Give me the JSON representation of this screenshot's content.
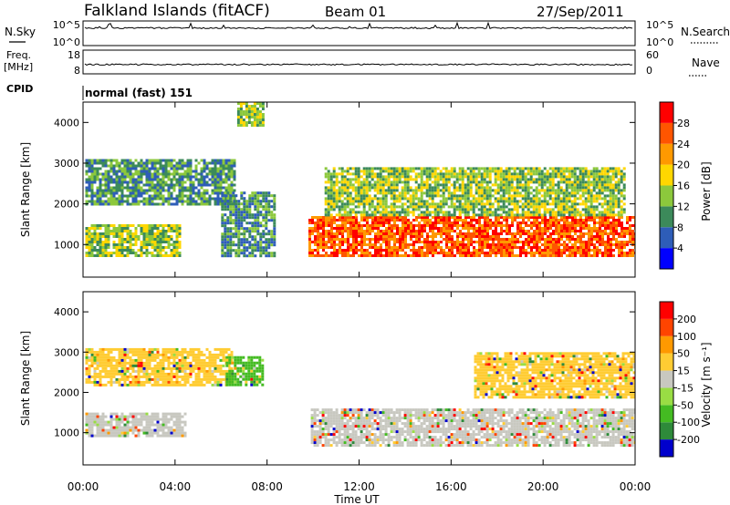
{
  "header": {
    "station": "Falkland Islands (fitACF)",
    "beam": "Beam 01",
    "date": "27/Sep/2011"
  },
  "noise_panel": {
    "left_label": "N.Sky",
    "right_label": "N.Search",
    "left_ticks": [
      "10^5",
      "10^0"
    ],
    "right_ticks": [
      "10^5",
      "10^0"
    ]
  },
  "freq_panel": {
    "left_label": "Freq.",
    "left_unit": "[MHz]",
    "right_label": "Nave",
    "left_ticks": [
      "18",
      "8"
    ],
    "right_ticks": [
      "60",
      "0"
    ]
  },
  "cpid": {
    "label": "CPID",
    "mode": "normal (fast) 151"
  },
  "chart_data": [
    {
      "type": "heatmap",
      "quantity": "power",
      "ylabel": "Slant Range [km]",
      "yticks": [
        "1000",
        "2000",
        "3000",
        "4000"
      ],
      "ylim": [
        200,
        4500
      ],
      "xlim": [
        0,
        24
      ],
      "colorbar": {
        "label": "Power [dB]",
        "ticks": [
          "4",
          "8",
          "12",
          "16",
          "20",
          "24",
          "28"
        ],
        "colors": [
          "#0000ff",
          "#2e5db8",
          "#3c8a5a",
          "#8cc83c",
          "#ffd700",
          "#ff9900",
          "#ff5500",
          "#ff0000"
        ]
      },
      "echo_regions": [
        {
          "t0": 0.1,
          "t1": 4.2,
          "r0": 700,
          "r1": 1500,
          "level": 3
        },
        {
          "t0": 0.1,
          "t1": 6.6,
          "r0": 2000,
          "r1": 3100,
          "level": 2
        },
        {
          "t0": 6.0,
          "t1": 8.3,
          "r0": 700,
          "r1": 2300,
          "level": 2
        },
        {
          "t0": 6.7,
          "t1": 7.8,
          "r0": 3900,
          "r1": 4500,
          "level": 3
        },
        {
          "t0": 9.8,
          "t1": 24.0,
          "r0": 700,
          "r1": 1700,
          "level": 6
        },
        {
          "t0": 10.5,
          "t1": 23.5,
          "r0": 1700,
          "r1": 2900,
          "level": 3
        }
      ]
    },
    {
      "type": "heatmap",
      "quantity": "velocity",
      "ylabel": "Slant Range [km]",
      "yticks": [
        "1000",
        "2000",
        "3000",
        "4000"
      ],
      "ylim": [
        200,
        4500
      ],
      "xlim": [
        0,
        24
      ],
      "colorbar": {
        "label": "Velocity [m s⁻¹]",
        "ticks": [
          "200",
          "100",
          "50",
          "15",
          "-15",
          "-50",
          "-100",
          "-200"
        ],
        "colors": [
          "#0000cc",
          "#2e8a3a",
          "#44bb22",
          "#99dd44",
          "#c8c8c0",
          "#ffcc33",
          "#ff9900",
          "#ff4400",
          "#ff0000"
        ]
      },
      "echo_regions": [
        {
          "t0": 0.1,
          "t1": 4.5,
          "r0": 900,
          "r1": 1500,
          "level": 4
        },
        {
          "t0": 0.1,
          "t1": 6.5,
          "r0": 2200,
          "r1": 3100,
          "level": 5
        },
        {
          "t0": 6.2,
          "t1": 7.8,
          "r0": 2200,
          "r1": 2900,
          "level": 2
        },
        {
          "t0": 9.9,
          "t1": 24.0,
          "r0": 700,
          "r1": 1600,
          "level": 4
        },
        {
          "t0": 17.0,
          "t1": 24.0,
          "r0": 1900,
          "r1": 3000,
          "level": 5
        }
      ]
    }
  ],
  "x_axis": {
    "ticks": [
      "00:00",
      "04:00",
      "08:00",
      "12:00",
      "16:00",
      "20:00",
      "00:00"
    ],
    "label": "Time UT"
  }
}
